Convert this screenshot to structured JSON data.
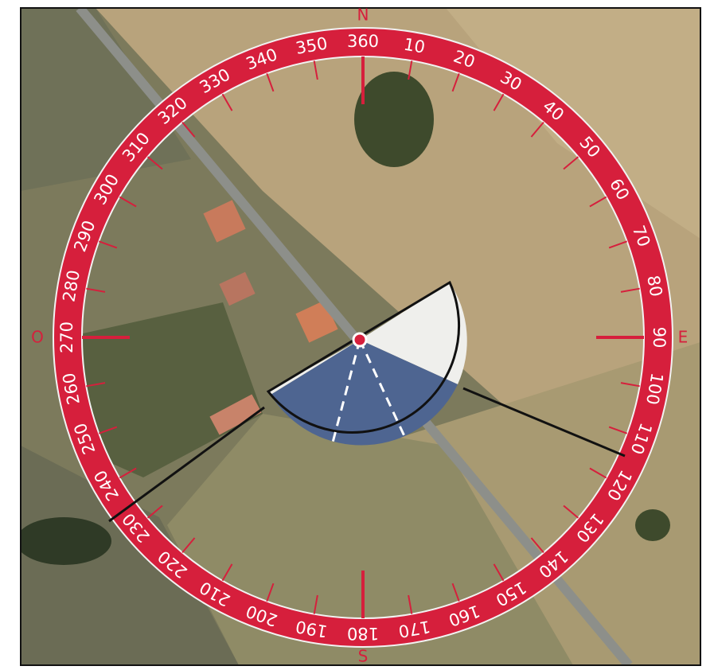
{
  "compass": {
    "degree_labels": [
      10,
      20,
      30,
      40,
      50,
      60,
      70,
      80,
      90,
      100,
      110,
      120,
      130,
      140,
      150,
      160,
      170,
      180,
      190,
      200,
      210,
      220,
      230,
      240,
      250,
      260,
      270,
      280,
      290,
      300,
      310,
      320,
      330,
      340,
      350,
      360
    ],
    "cardinals": {
      "north": "N",
      "east": "E",
      "south": "S",
      "west": "O"
    }
  }
}
